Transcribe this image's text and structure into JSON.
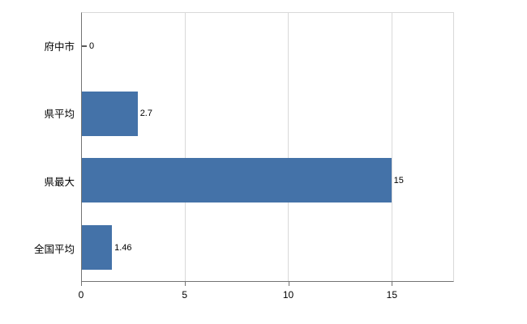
{
  "chart_data": {
    "type": "bar",
    "orientation": "horizontal",
    "title": "",
    "xlabel": "",
    "ylabel": "",
    "categories": [
      "府中市",
      "県平均",
      "県最大",
      "全国平均"
    ],
    "values": [
      0,
      2.7,
      15,
      1.46
    ],
    "value_labels": [
      "0",
      "2.7",
      "15",
      "1.46"
    ],
    "x_ticks": [
      0,
      5,
      10,
      15
    ],
    "x_tick_labels": [
      "0",
      "5",
      "10",
      "15"
    ],
    "xlim": [
      0,
      18
    ],
    "grid": true,
    "legend": false,
    "colors": {
      "bar": "#4472a8",
      "grid": "#d9d9d9",
      "axis": "#737373",
      "text": "#000000"
    }
  }
}
